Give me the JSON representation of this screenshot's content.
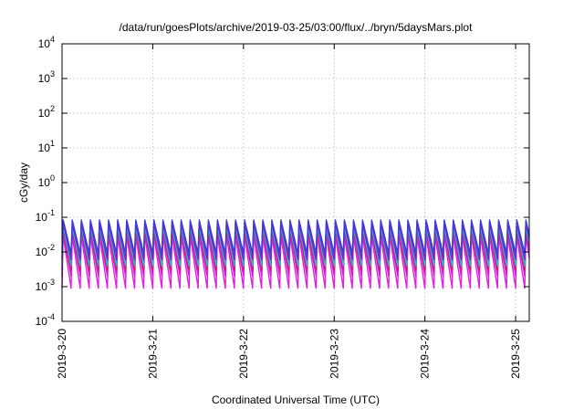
{
  "chart_data": {
    "type": "line",
    "title": "/data/run/goesPlots/archive/2019-03-25/03:00/flux/../bryn/5daysMars.plot",
    "xlabel": "Coordinated Universal Time (UTC)",
    "ylabel": "cGy/day",
    "x_range_days": [
      0,
      5.15
    ],
    "x_ticks": [
      {
        "label": "2019-3-20",
        "day": 0
      },
      {
        "label": "2019-3-21",
        "day": 1
      },
      {
        "label": "2019-3-22",
        "day": 2
      },
      {
        "label": "2019-3-23",
        "day": 3
      },
      {
        "label": "2019-3-24",
        "day": 4
      },
      {
        "label": "2019-3-25",
        "day": 5
      }
    ],
    "y_scale": "log",
    "ylim_exponent": [
      -4,
      4
    ],
    "y_ticks": [
      {
        "base": "10",
        "exp": "4"
      },
      {
        "base": "10",
        "exp": "3"
      },
      {
        "base": "10",
        "exp": "2"
      },
      {
        "base": "10",
        "exp": "1"
      },
      {
        "base": "10",
        "exp": "0"
      },
      {
        "base": "10",
        "exp": "-1"
      },
      {
        "base": "10",
        "exp": "-2"
      },
      {
        "base": "10",
        "exp": "-3"
      },
      {
        "base": "10",
        "exp": "-4"
      }
    ],
    "grid": true,
    "legend": "none",
    "oscillation_period_days": 0.1,
    "series": [
      {
        "color": "#3b3bd9",
        "peak": 0.085,
        "trough": 0.009
      },
      {
        "color": "#7a1fd6",
        "peak": 0.07,
        "trough": 0.006
      },
      {
        "color": "#1fbfbf",
        "peak": 0.055,
        "trough": 0.004
      },
      {
        "color": "#cc1f6a",
        "peak": 0.045,
        "trough": 0.003
      },
      {
        "color": "#d11fd1",
        "peak": 0.04,
        "trough": 0.002
      },
      {
        "color": "#e01fe0",
        "peak": 0.03,
        "trough": 0.0009
      }
    ]
  }
}
